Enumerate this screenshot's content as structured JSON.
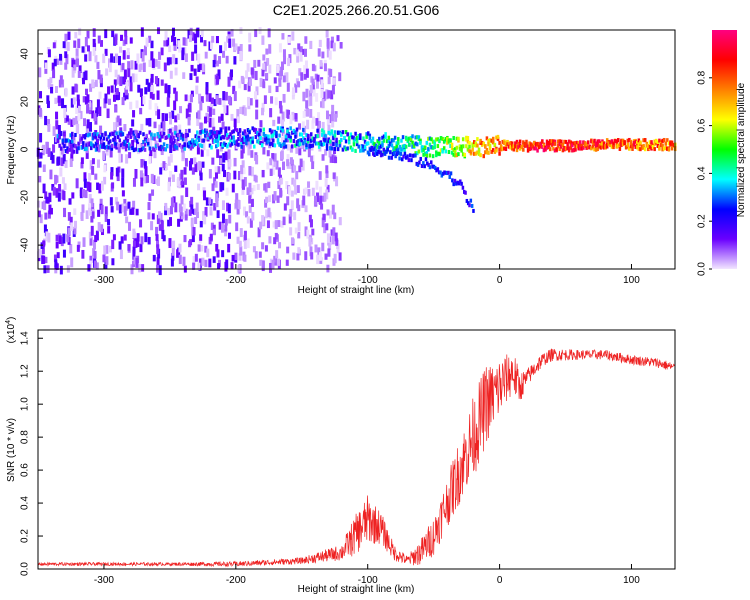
{
  "figure_title": "C2E1.2025.266.20.51.G06",
  "chart_data": [
    {
      "type": "heatmap",
      "name": "spectrogram",
      "xlabel": "Height of straight line (km)",
      "ylabel": "Frequency (Hz)",
      "xlim": [
        -350,
        133
      ],
      "ylim": [
        -50,
        50
      ],
      "xticks": [
        -300,
        -200,
        -100,
        0,
        100
      ],
      "yticks": [
        -40,
        -20,
        0,
        20,
        40
      ],
      "colorbar": {
        "label": "Normalized spectral amplitude",
        "range": [
          0,
          1
        ],
        "ticks": [
          "0.0",
          "0.2",
          "0.4",
          "0.6",
          "0.8"
        ],
        "colors": [
          "#f2e6ff",
          "#6a00ff",
          "#0000ff",
          "#00ffff",
          "#00ff00",
          "#ffff00",
          "#ff8000",
          "#ff0000",
          "#ff0080"
        ]
      },
      "ridge": {
        "x": [
          -330,
          -300,
          -250,
          -200,
          -150,
          -100,
          -75,
          -50,
          -30,
          -20,
          0,
          20,
          50,
          80,
          100,
          133
        ],
        "frequency": [
          3,
          3,
          4,
          5,
          5,
          3,
          2,
          1,
          1,
          1,
          1.5,
          1.5,
          1.5,
          2,
          2,
          2
        ],
        "amplitude": [
          0.2,
          0.2,
          0.2,
          0.25,
          0.3,
          0.35,
          0.4,
          0.45,
          0.6,
          0.7,
          0.75,
          0.85,
          0.85,
          0.8,
          0.8,
          0.75
        ]
      },
      "branch": {
        "x": [
          -100,
          -80,
          -60,
          -40,
          -30,
          -25,
          -20
        ],
        "frequency": [
          0,
          -2,
          -5,
          -10,
          -15,
          -20,
          -25
        ]
      }
    },
    {
      "type": "line",
      "name": "snr",
      "xlabel": "Height of straight line (km)",
      "ylabel": "SNR (10 * v/v)",
      "y_multiplier": "(x10",
      "y_multiplier_exp": "4",
      "y_multiplier_close": ")",
      "xlim": [
        -350,
        133
      ],
      "ylim": [
        0,
        1.45
      ],
      "xticks": [
        -300,
        -200,
        -100,
        0,
        100
      ],
      "yticks": [
        "0.0",
        "0.2",
        "0.4",
        "0.6",
        "0.8",
        "1.0",
        "1.2",
        "1.4"
      ],
      "color": "#ee2222",
      "series": [
        {
          "name": "SNR",
          "x": [
            -350,
            -300,
            -250,
            -200,
            -150,
            -120,
            -110,
            -100,
            -90,
            -80,
            -70,
            -60,
            -50,
            -40,
            -35,
            -30,
            -25,
            -20,
            -15,
            -10,
            -5,
            0,
            5,
            10,
            15,
            20,
            25,
            30,
            35,
            40,
            60,
            80,
            100,
            120,
            133
          ],
          "y": [
            0.03,
            0.03,
            0.03,
            0.03,
            0.05,
            0.1,
            0.2,
            0.3,
            0.25,
            0.1,
            0.05,
            0.1,
            0.2,
            0.4,
            0.5,
            0.6,
            0.7,
            0.8,
            0.9,
            1.0,
            1.05,
            1.1,
            1.15,
            1.2,
            1.1,
            1.15,
            1.2,
            1.25,
            1.28,
            1.3,
            1.3,
            1.3,
            1.27,
            1.25,
            1.22
          ],
          "noise": [
            0.01,
            0.01,
            0.01,
            0.015,
            0.02,
            0.05,
            0.12,
            0.15,
            0.1,
            0.05,
            0.03,
            0.08,
            0.12,
            0.15,
            0.18,
            0.2,
            0.22,
            0.25,
            0.25,
            0.25,
            0.2,
            0.2,
            0.15,
            0.15,
            0.1,
            0.06,
            0.05,
            0.05,
            0.04,
            0.04,
            0.03,
            0.03,
            0.03,
            0.03,
            0.03
          ]
        }
      ]
    }
  ]
}
